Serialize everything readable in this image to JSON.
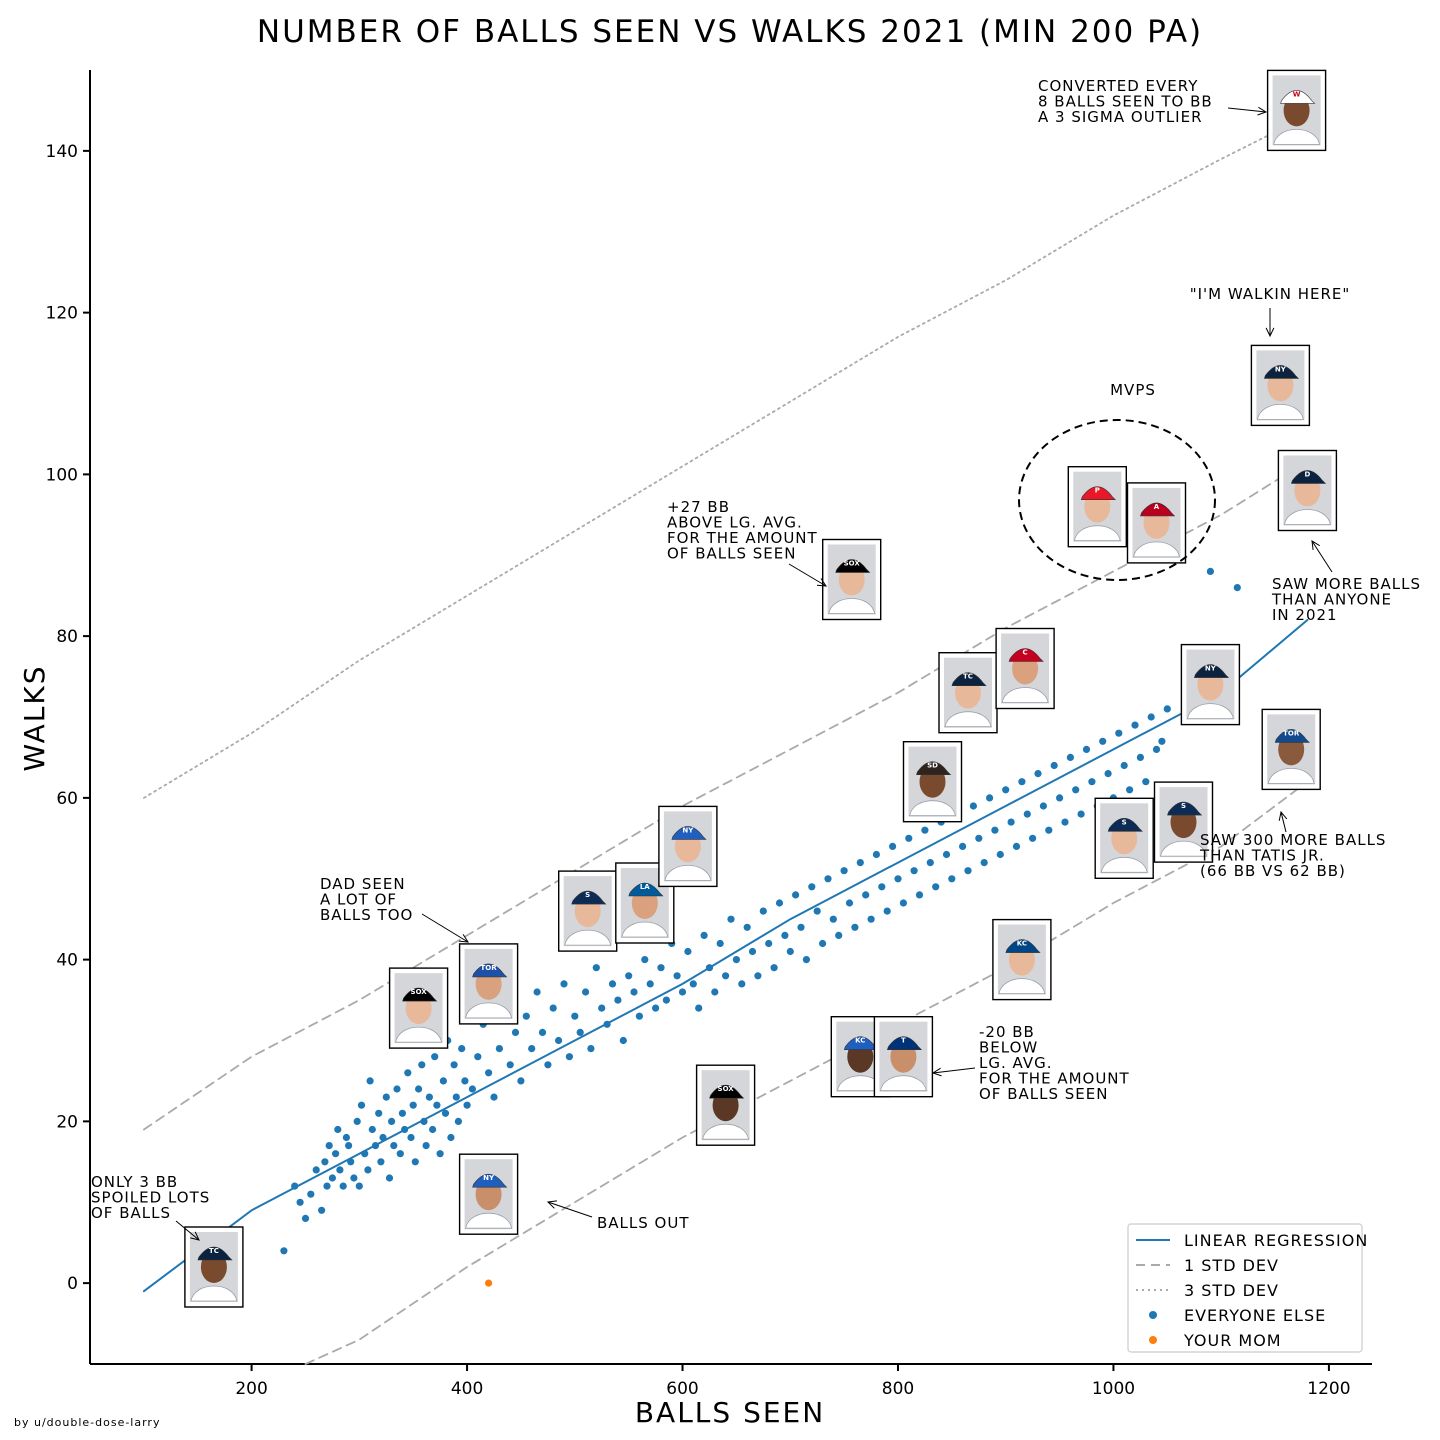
{
  "chart_data": {
    "type": "scatter",
    "title": "NUMBER OF BALLS SEEN VS WALKS 2021 (MIN 200 PA)",
    "xlabel": "BALLS SEEN",
    "ylabel": "WALKS",
    "xlim": [
      50,
      1240
    ],
    "ylim": [
      -10,
      150
    ],
    "xticks": [
      200,
      400,
      600,
      800,
      1000,
      1200
    ],
    "yticks": [
      0,
      20,
      40,
      60,
      80,
      100,
      120,
      140
    ],
    "grid": false,
    "legend_position": "bottom-right",
    "credit": "by u/Double-Dose-Larry",
    "series": [
      {
        "name": "LINEAR REGRESSION",
        "kind": "line",
        "style": "solid",
        "color": "#1f77b4",
        "x": [
          100,
          200,
          300,
          400,
          500,
          600,
          700,
          800,
          900,
          1000,
          1100,
          1180
        ],
        "y": [
          -1,
          9,
          16,
          23,
          30,
          37,
          45,
          52,
          59,
          66,
          73,
          82
        ]
      },
      {
        "name": "1 STD DEV",
        "kind": "line",
        "style": "dashed",
        "color": "#aaaaaa",
        "x": [
          100,
          200,
          300,
          400,
          500,
          600,
          700,
          800,
          900,
          1000,
          1100,
          1160
        ],
        "y": [
          19,
          28,
          35,
          43,
          51,
          59,
          66,
          73,
          81,
          88,
          95,
          100
        ]
      },
      {
        "name": "1 STD DEV (lower)",
        "kind": "line",
        "style": "dashed",
        "color": "#aaaaaa",
        "x": [
          250,
          300,
          400,
          500,
          600,
          700,
          800,
          900,
          1000,
          1100,
          1180
        ],
        "y": [
          -10,
          -7,
          2,
          10,
          18,
          25,
          32,
          39,
          47,
          54,
          62
        ]
      },
      {
        "name": "3 STD DEV",
        "kind": "line",
        "style": "dotted",
        "color": "#aaaaaa",
        "x": [
          100,
          200,
          300,
          400,
          500,
          600,
          700,
          800,
          900,
          1000,
          1100,
          1160
        ],
        "y": [
          60,
          68,
          77,
          85,
          93,
          101,
          109,
          117,
          124,
          132,
          139,
          143
        ]
      },
      {
        "name": "EVERYONE ELSE",
        "kind": "scatter",
        "color": "#1f77b4",
        "x": [
          230,
          240,
          245,
          250,
          255,
          260,
          265,
          268,
          270,
          272,
          275,
          278,
          280,
          282,
          285,
          288,
          290,
          292,
          295,
          298,
          300,
          302,
          305,
          308,
          310,
          312,
          315,
          318,
          320,
          322,
          325,
          328,
          330,
          332,
          335,
          338,
          340,
          342,
          345,
          348,
          350,
          352,
          355,
          358,
          360,
          362,
          365,
          368,
          370,
          372,
          375,
          378,
          380,
          382,
          385,
          388,
          390,
          392,
          395,
          398,
          400,
          405,
          410,
          415,
          420,
          425,
          430,
          435,
          440,
          445,
          450,
          455,
          460,
          465,
          470,
          475,
          480,
          485,
          490,
          495,
          500,
          505,
          510,
          515,
          520,
          525,
          530,
          535,
          540,
          545,
          550,
          555,
          560,
          565,
          570,
          575,
          580,
          585,
          590,
          595,
          600,
          605,
          610,
          615,
          620,
          625,
          630,
          635,
          640,
          645,
          650,
          655,
          660,
          665,
          670,
          675,
          680,
          685,
          690,
          695,
          700,
          705,
          710,
          715,
          720,
          725,
          730,
          735,
          740,
          745,
          750,
          755,
          760,
          765,
          770,
          775,
          780,
          785,
          790,
          795,
          800,
          805,
          810,
          815,
          820,
          825,
          830,
          835,
          840,
          845,
          850,
          855,
          860,
          865,
          870,
          875,
          880,
          885,
          890,
          895,
          900,
          905,
          910,
          915,
          920,
          925,
          930,
          935,
          940,
          945,
          950,
          955,
          960,
          965,
          970,
          975,
          980,
          985,
          990,
          995,
          1000,
          1005,
          1010,
          1015,
          1020,
          1025,
          1030,
          1035,
          1040,
          1045,
          1050,
          1090,
          1115
        ],
        "y": [
          4,
          12,
          10,
          8,
          11,
          14,
          9,
          15,
          12,
          17,
          13,
          16,
          19,
          14,
          12,
          18,
          17,
          15,
          13,
          20,
          12,
          22,
          16,
          14,
          25,
          19,
          17,
          21,
          15,
          18,
          23,
          13,
          20,
          17,
          24,
          16,
          21,
          19,
          26,
          18,
          22,
          15,
          24,
          27,
          20,
          17,
          23,
          19,
          28,
          22,
          16,
          25,
          21,
          30,
          18,
          27,
          23,
          20,
          29,
          25,
          22,
          24,
          28,
          32,
          26,
          23,
          29,
          35,
          27,
          31,
          25,
          33,
          29,
          36,
          31,
          27,
          34,
          30,
          37,
          28,
          33,
          31,
          36,
          29,
          39,
          34,
          32,
          37,
          35,
          30,
          38,
          36,
          33,
          40,
          37,
          34,
          39,
          35,
          42,
          38,
          36,
          41,
          37,
          34,
          43,
          39,
          36,
          42,
          38,
          45,
          40,
          37,
          44,
          41,
          38,
          46,
          42,
          39,
          47,
          43,
          41,
          48,
          44,
          40,
          49,
          46,
          42,
          50,
          45,
          43,
          51,
          47,
          44,
          52,
          48,
          45,
          53,
          49,
          46,
          54,
          50,
          47,
          55,
          51,
          48,
          56,
          52,
          49,
          57,
          53,
          50,
          58,
          54,
          51,
          59,
          55,
          52,
          60,
          56,
          53,
          61,
          57,
          54,
          62,
          58,
          55,
          63,
          59,
          56,
          64,
          60,
          57,
          65,
          61,
          58,
          66,
          62,
          59,
          67,
          63,
          60,
          68,
          64,
          61,
          69,
          65,
          62,
          70,
          66,
          67,
          71,
          88,
          86
        ]
      },
      {
        "name": "YOUR MOM",
        "kind": "scatter",
        "color": "#ff7f0e",
        "x": [
          420
        ],
        "y": [
          0
        ]
      }
    ],
    "player_cards": [
      {
        "x": 165,
        "y": 2,
        "helmet": "#0c2340",
        "logo": "TC",
        "skin": "#7a4a2e"
      },
      {
        "x": 420,
        "y": 11,
        "helmet": "#1f5fbf",
        "logo": "NY",
        "skin": "#c98f6a"
      },
      {
        "x": 355,
        "y": 34,
        "helmet": "#000000",
        "logo": "SOX",
        "skin": "#e8b89a"
      },
      {
        "x": 420,
        "y": 37,
        "helmet": "#1d50a8",
        "logo": "TOR",
        "skin": "#d9a17e"
      },
      {
        "x": 512,
        "y": 46,
        "helmet": "#0c2c56",
        "logo": "S",
        "skin": "#e8b89a"
      },
      {
        "x": 565,
        "y": 47,
        "helmet": "#005a9c",
        "logo": "LA",
        "skin": "#d9a17e"
      },
      {
        "x": 605,
        "y": 54,
        "helmet": "#1f5fbf",
        "logo": "NY",
        "skin": "#e8b89a"
      },
      {
        "x": 640,
        "y": 22,
        "helmet": "#000000",
        "logo": "SOX",
        "skin": "#5a3825"
      },
      {
        "x": 757,
        "y": 87,
        "helmet": "#000000",
        "logo": "SOX",
        "skin": "#e8b89a"
      },
      {
        "x": 765,
        "y": 28,
        "helmet": "#1f5fbf",
        "logo": "KC",
        "skin": "#5a3825"
      },
      {
        "x": 805,
        "y": 28,
        "helmet": "#003278",
        "logo": "T",
        "skin": "#c98f6a"
      },
      {
        "x": 832,
        "y": 62,
        "helmet": "#2f241d",
        "logo": "SD",
        "skin": "#7a4a2e"
      },
      {
        "x": 865,
        "y": 73,
        "helmet": "#0c2340",
        "logo": "TC",
        "skin": "#e8b89a"
      },
      {
        "x": 918,
        "y": 76,
        "helmet": "#c6011f",
        "logo": "C",
        "skin": "#d9a17e"
      },
      {
        "x": 915,
        "y": 40,
        "helmet": "#004687",
        "logo": "KC",
        "skin": "#e8b89a"
      },
      {
        "x": 985,
        "y": 96,
        "helmet": "#e81828",
        "logo": "P",
        "skin": "#e8b89a"
      },
      {
        "x": 1040,
        "y": 94,
        "helmet": "#ba0021",
        "logo": "A",
        "skin": "#e8b89a"
      },
      {
        "x": 1010,
        "y": 55,
        "helmet": "#0c2c56",
        "logo": "S",
        "skin": "#e8b89a"
      },
      {
        "x": 1065,
        "y": 57,
        "helmet": "#0c2c56",
        "logo": "S",
        "skin": "#7a4a2e"
      },
      {
        "x": 1090,
        "y": 74,
        "helmet": "#0c2340",
        "logo": "NY",
        "skin": "#e8b89a"
      },
      {
        "x": 1165,
        "y": 66,
        "helmet": "#134a8e",
        "logo": "TOR",
        "skin": "#8a5a3c"
      },
      {
        "x": 1155,
        "y": 111,
        "helmet": "#0c2340",
        "logo": "NY",
        "skin": "#e8b89a"
      },
      {
        "x": 1180,
        "y": 98,
        "helmet": "#0c2340",
        "logo": "D",
        "skin": "#e8b89a"
      },
      {
        "x": 1170,
        "y": 145,
        "helmet": "#ffffff",
        "logo": "W",
        "skin": "#7a4a2e"
      }
    ],
    "annotations": [
      {
        "lines": [
          "CONVERTED EVERY",
          "8 BALLS SEEN TO BB",
          "A 3 SIGMA OUTLIER"
        ]
      },
      {
        "lines": [
          "\"I'M WALKIN HERE\""
        ]
      },
      {
        "lines": [
          "MVPS"
        ]
      },
      {
        "lines": [
          "+27 BB",
          "ABOVE LG. AVG.",
          "FOR THE AMOUNT",
          "OF BALLS SEEN"
        ]
      },
      {
        "lines": [
          "SAW MORE BALLS",
          "THAN ANYONE",
          "IN 2021"
        ]
      },
      {
        "lines": [
          "DAD SEEN",
          "A LOT OF",
          "BALLS TOO"
        ]
      },
      {
        "lines": [
          "SAW 300 MORE BALLS",
          "THAN TATIS JR.",
          "(66 BB VS 62 BB)"
        ]
      },
      {
        "lines": [
          "-20 BB",
          "BELOW",
          "LG. AVG.",
          "FOR THE AMOUNT",
          "OF BALLS SEEN"
        ]
      },
      {
        "lines": [
          "ONLY 3 BB",
          "SPOILED LOTS",
          "OF BALLS"
        ]
      },
      {
        "lines": [
          "BALLS OUT"
        ]
      }
    ]
  }
}
